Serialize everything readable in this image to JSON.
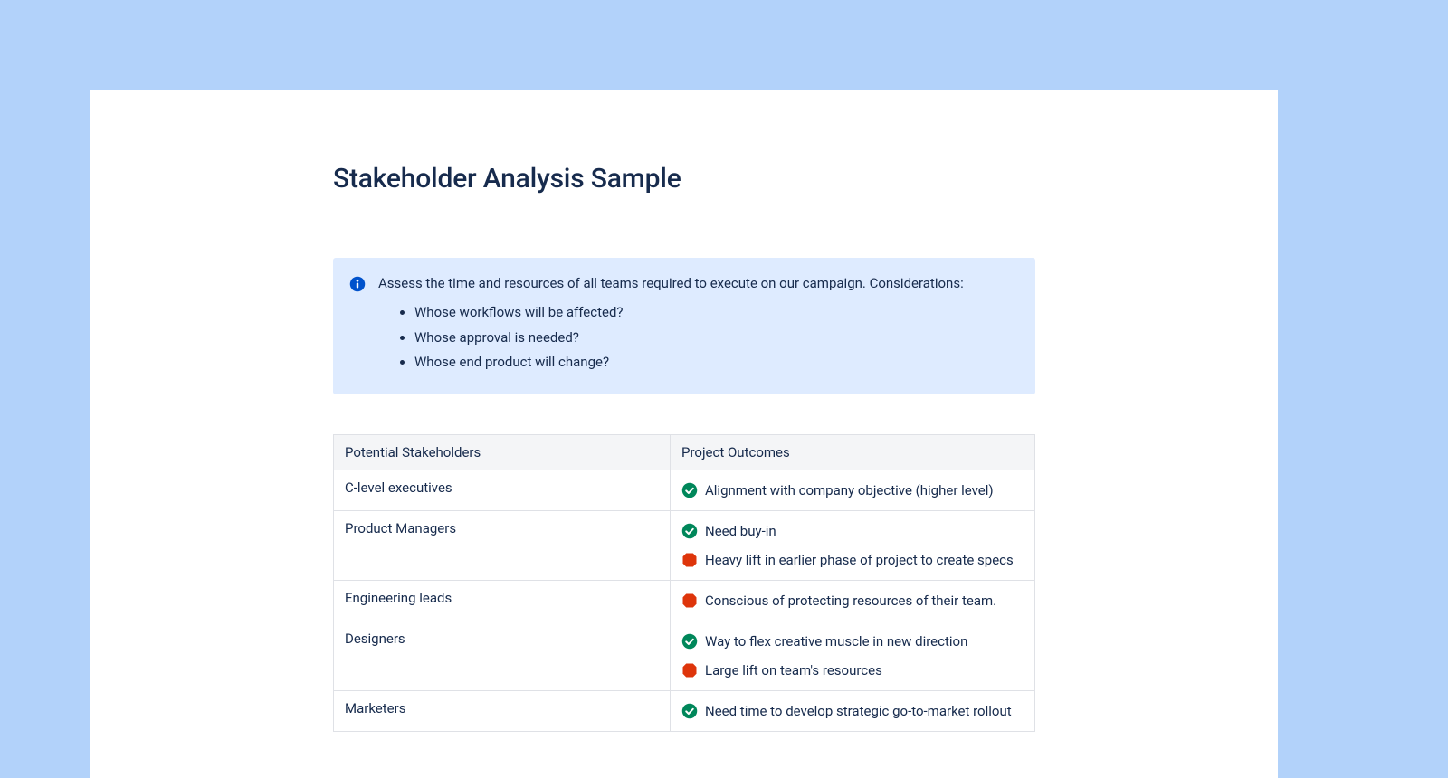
{
  "colors": {
    "page_bg": "#b2d2fa",
    "card_bg": "#ffffff",
    "text": "#172b4d",
    "panel_bg": "#deebff",
    "info_icon": "#0052cc",
    "table_border": "#dfe1e6",
    "table_header_bg": "#f4f5f7",
    "status_success": "#00875a",
    "status_blocker": "#de350b"
  },
  "title": "Stakeholder Analysis Sample",
  "info_panel": {
    "lead": "Assess the time and resources of all teams required to execute on our campaign. Considerations:",
    "bullets": [
      "Whose workflows will be affected?",
      "Whose approval is needed?",
      "Whose end product will change?"
    ]
  },
  "table": {
    "columns": [
      "Potential Stakeholders",
      "Project Outcomes"
    ],
    "rows": [
      {
        "stakeholder": "C-level executives",
        "outcomes": [
          {
            "status": "success",
            "text": "Alignment with company objective (higher level)"
          }
        ]
      },
      {
        "stakeholder": "Product Managers",
        "outcomes": [
          {
            "status": "success",
            "text": "Need buy-in"
          },
          {
            "status": "blocker",
            "text": "Heavy lift in earlier phase of project to create specs"
          }
        ]
      },
      {
        "stakeholder": "Engineering leads",
        "outcomes": [
          {
            "status": "blocker",
            "text": "Conscious of protecting resources of their team."
          }
        ]
      },
      {
        "stakeholder": "Designers",
        "outcomes": [
          {
            "status": "success",
            "text": "Way to flex creative muscle in new direction"
          },
          {
            "status": "blocker",
            "text": "Large lift on team's resources"
          }
        ]
      },
      {
        "stakeholder": "Marketers",
        "outcomes": [
          {
            "status": "success",
            "text": "Need time to develop strategic go-to-market rollout"
          }
        ]
      }
    ]
  }
}
